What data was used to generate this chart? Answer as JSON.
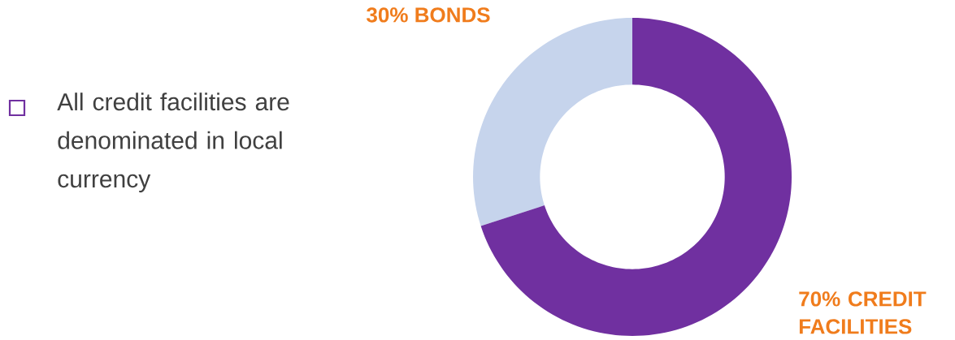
{
  "chart_data": {
    "type": "donut",
    "categories": [
      "BONDS",
      "CREDIT FACILITIES"
    ],
    "values": [
      30,
      70
    ],
    "value_labels": [
      "30%",
      "70%"
    ],
    "colors": [
      "#c6d4ec",
      "#7030a0"
    ],
    "annotations": [
      "All credit facilities are denominated in local currency"
    ]
  }
}
